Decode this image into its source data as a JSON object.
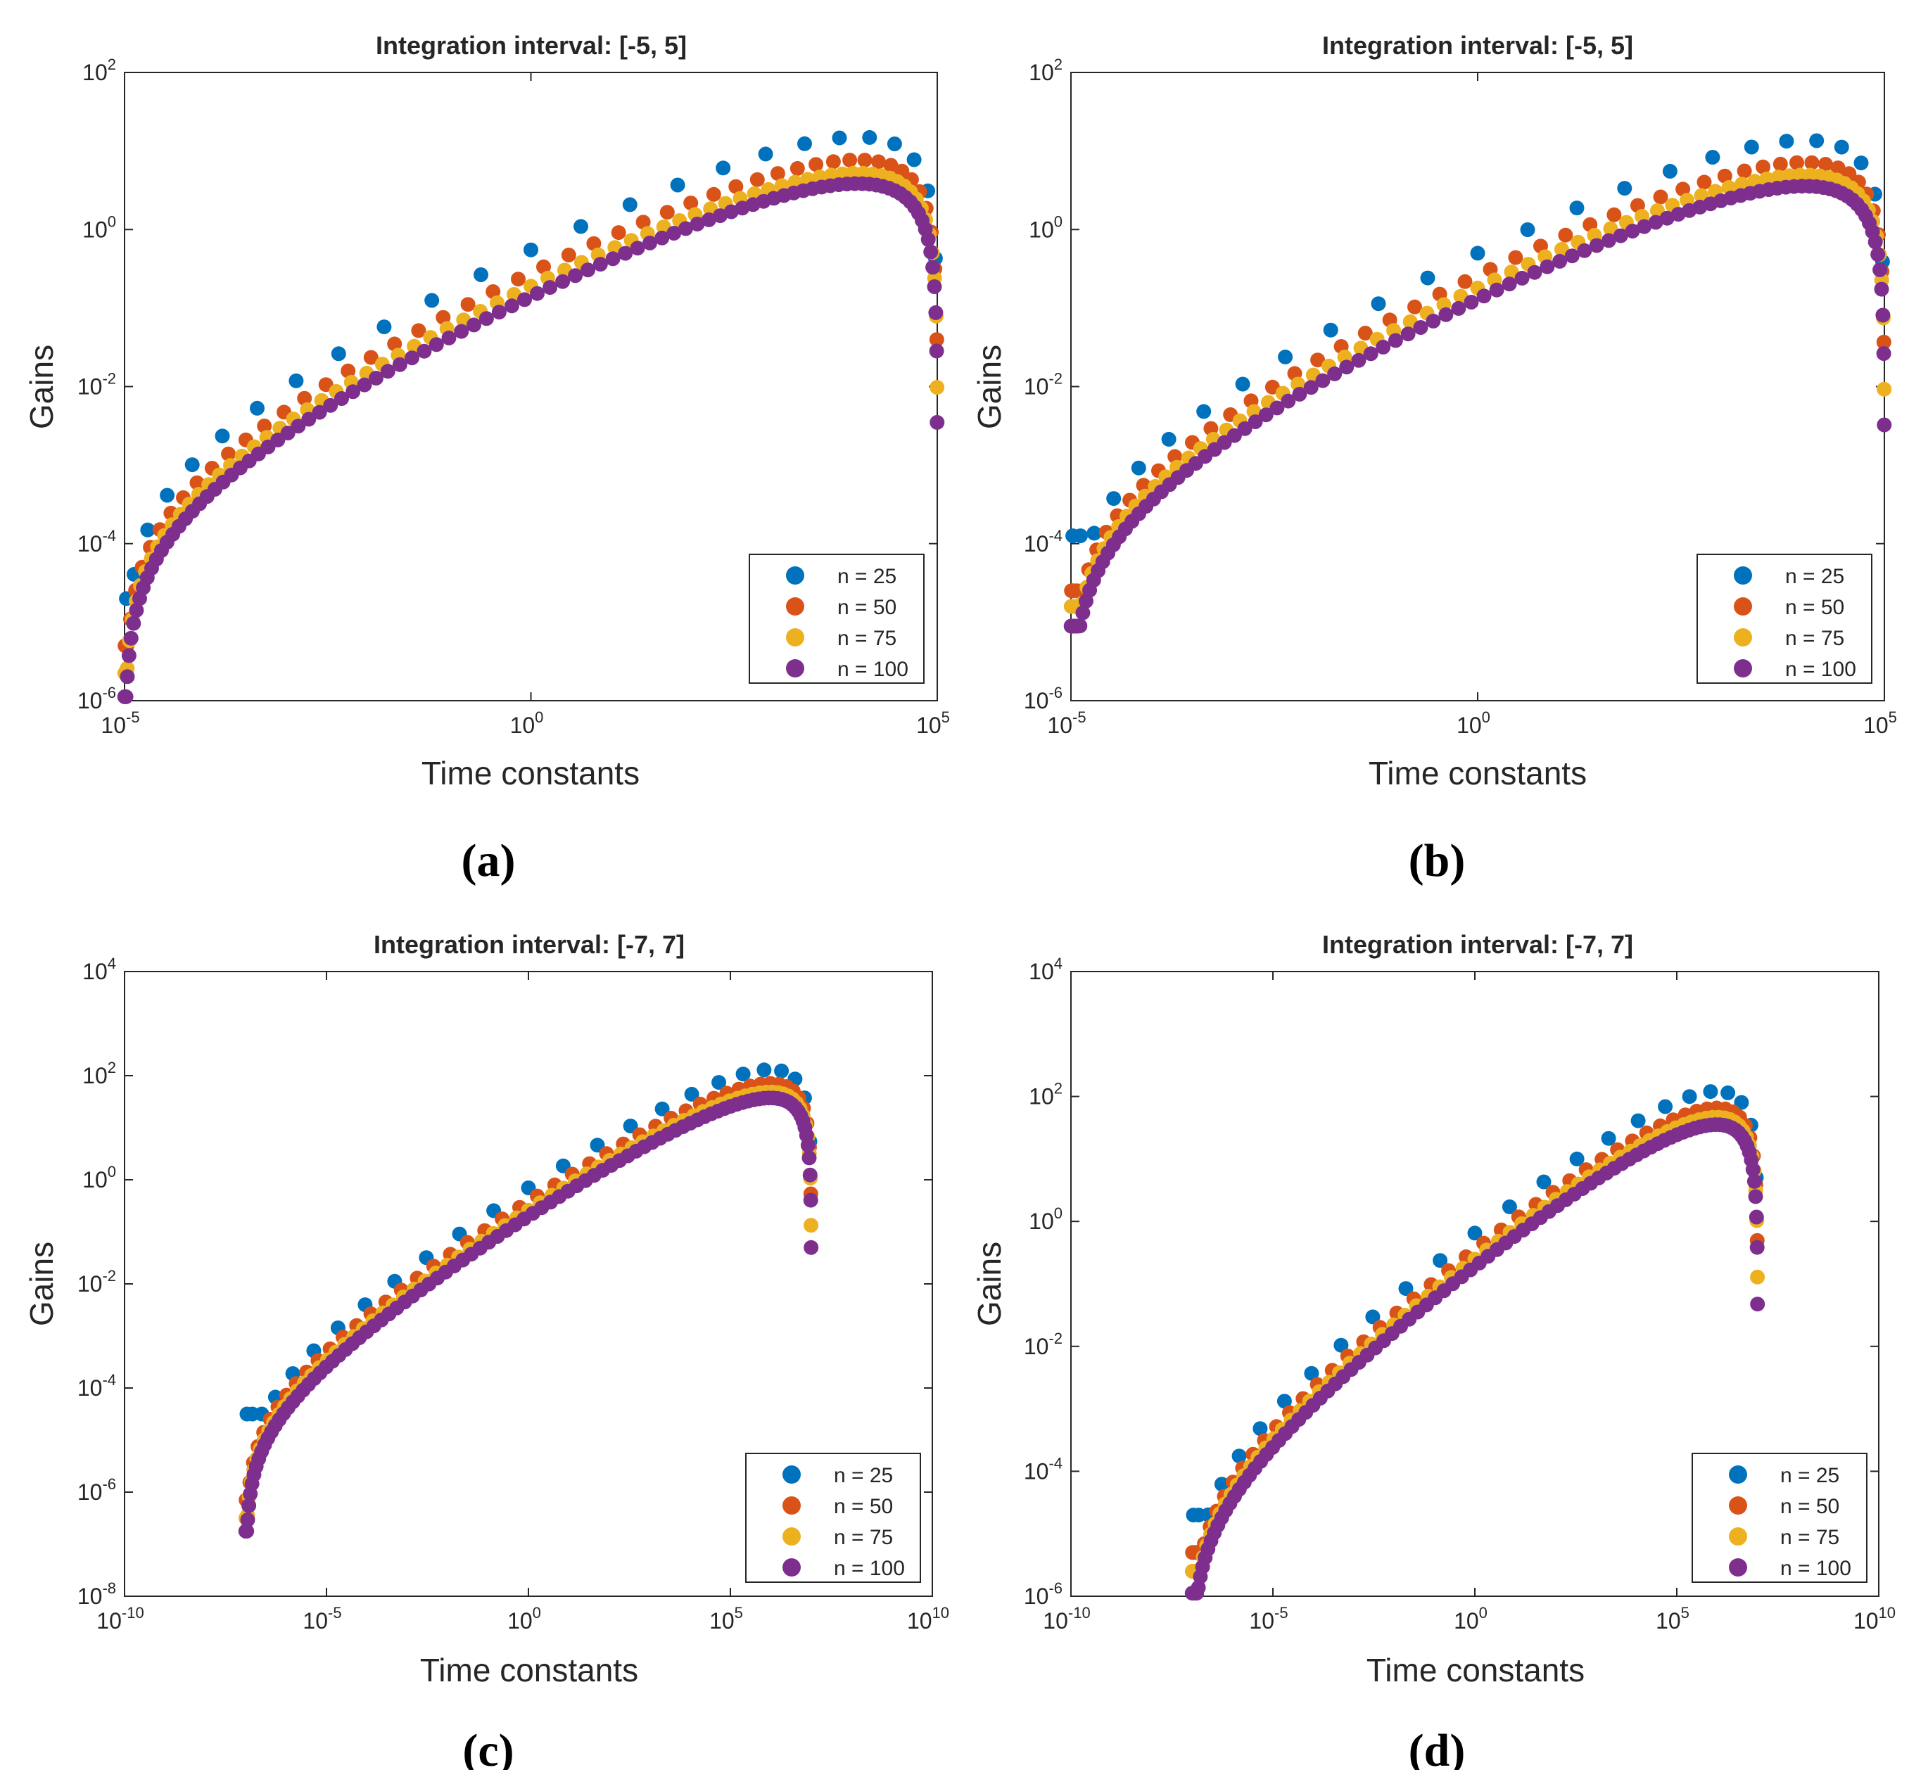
{
  "figure": {
    "panels": [
      {
        "id": "a",
        "caption_label": "(a)"
      },
      {
        "id": "b",
        "caption_label": "(b)"
      },
      {
        "id": "c",
        "caption_label": "(c)"
      },
      {
        "id": "d",
        "caption_label": "(d)"
      }
    ]
  },
  "colors": {
    "n25": "#0072BD",
    "n50": "#D95319",
    "n75": "#EDB120",
    "n100": "#7E2F8E"
  },
  "chart_data": [
    {
      "type": "scatter",
      "panel": "a",
      "title": "Integration interval: [-5, 5]",
      "xlabel": "Time constants",
      "ylabel": "Gains",
      "xscale": "log",
      "yscale": "log",
      "xlim_exp": [
        -5,
        5
      ],
      "ylim_exp": [
        -6,
        2
      ],
      "xticks": [
        {
          "base": "10",
          "exp": "-5",
          "value_exp": -5
        },
        {
          "base": "10",
          "exp": "0",
          "value_exp": 0
        },
        {
          "base": "10",
          "exp": "5",
          "value_exp": 5
        }
      ],
      "yticks": [
        {
          "base": "10",
          "exp": "-6",
          "value_exp": -6
        },
        {
          "base": "10",
          "exp": "-4",
          "value_exp": -4
        },
        {
          "base": "10",
          "exp": "-2",
          "value_exp": -2
        },
        {
          "base": "10",
          "exp": "0",
          "value_exp": 0
        },
        {
          "base": "10",
          "exp": "2",
          "value_exp": 2
        }
      ],
      "legend_position": "bottom-right",
      "series": [
        {
          "name": "n = 25",
          "n": 25,
          "color_key": "n25",
          "gain_at_1": 0.55,
          "peak_log_gain": 1.6,
          "min_log_gain": -4.7
        },
        {
          "name": "n = 50",
          "n": 50,
          "color_key": "n50",
          "gain_at_1": 0.28,
          "peak_log_gain": 1.25,
          "min_log_gain": -5.3
        },
        {
          "name": "n = 75",
          "n": 75,
          "color_key": "n75",
          "gain_at_1": 0.19,
          "peak_log_gain": 1.05,
          "min_log_gain": -5.65
        },
        {
          "name": "n = 100",
          "n": 100,
          "color_key": "n100",
          "gain_at_1": 0.14,
          "peak_log_gain": 0.95,
          "min_log_gain": -5.95
        }
      ]
    },
    {
      "type": "scatter",
      "panel": "b",
      "title": "Integration interval: [-5, 5]",
      "xlabel": "Time constants",
      "ylabel": "Gains",
      "xscale": "log",
      "yscale": "log",
      "xlim_exp": [
        -5,
        5
      ],
      "ylim_exp": [
        -6,
        2
      ],
      "xticks": [
        {
          "base": "10",
          "exp": "-5",
          "value_exp": -5
        },
        {
          "base": "10",
          "exp": "0",
          "value_exp": 0
        },
        {
          "base": "10",
          "exp": "5",
          "value_exp": 5
        }
      ],
      "yticks": [
        {
          "base": "10",
          "exp": "-6",
          "value_exp": -6
        },
        {
          "base": "10",
          "exp": "-4",
          "value_exp": -4
        },
        {
          "base": "10",
          "exp": "-2",
          "value_exp": -2
        },
        {
          "base": "10",
          "exp": "0",
          "value_exp": 0
        },
        {
          "base": "10",
          "exp": "2",
          "value_exp": 2
        }
      ],
      "legend_position": "bottom-right",
      "series": [
        {
          "name": "n = 25",
          "n": 25,
          "color_key": "n25",
          "gain_at_1": 0.5,
          "peak_log_gain": 1.55,
          "min_log_gain": -3.9
        },
        {
          "name": "n = 50",
          "n": 50,
          "color_key": "n50",
          "gain_at_1": 0.26,
          "peak_log_gain": 1.22,
          "min_log_gain": -4.6
        },
        {
          "name": "n = 75",
          "n": 75,
          "color_key": "n75",
          "gain_at_1": 0.18,
          "peak_log_gain": 1.05,
          "min_log_gain": -4.8
        },
        {
          "name": "n = 100",
          "n": 100,
          "color_key": "n100",
          "gain_at_1": 0.13,
          "peak_log_gain": 0.95,
          "min_log_gain": -5.05
        }
      ]
    },
    {
      "type": "scatter",
      "panel": "c",
      "title": "Integration interval: [-7, 7]",
      "xlabel": "Time constants",
      "ylabel": "Gains",
      "xscale": "log",
      "yscale": "log",
      "xlim_exp": [
        -10,
        10
      ],
      "ylim_exp": [
        -8,
        4
      ],
      "data_x_range_exp": [
        -7,
        7
      ],
      "xticks": [
        {
          "base": "10",
          "exp": "-10",
          "value_exp": -10
        },
        {
          "base": "10",
          "exp": "-5",
          "value_exp": -5
        },
        {
          "base": "10",
          "exp": "0",
          "value_exp": 0
        },
        {
          "base": "10",
          "exp": "5",
          "value_exp": 5
        },
        {
          "base": "10",
          "exp": "10",
          "value_exp": 10
        }
      ],
      "yticks": [
        {
          "base": "10",
          "exp": "-8",
          "value_exp": -8
        },
        {
          "base": "10",
          "exp": "-6",
          "value_exp": -6
        },
        {
          "base": "10",
          "exp": "-4",
          "value_exp": -4
        },
        {
          "base": "10",
          "exp": "-2",
          "value_exp": -2
        },
        {
          "base": "10",
          "exp": "0",
          "value_exp": 0
        },
        {
          "base": "10",
          "exp": "2",
          "value_exp": 2
        },
        {
          "base": "10",
          "exp": "4",
          "value_exp": 4
        }
      ],
      "legend_position": "bottom-right",
      "series": [
        {
          "name": "n = 25",
          "n": 25,
          "color_key": "n25",
          "gain_at_1": 0.7,
          "peak_log_gain": 2.65,
          "min_log_gain": -4.5
        },
        {
          "name": "n = 50",
          "n": 50,
          "color_key": "n50",
          "gain_at_1": 0.38,
          "peak_log_gain": 2.3,
          "min_log_gain": -6.15
        },
        {
          "name": "n = 75",
          "n": 75,
          "color_key": "n75",
          "gain_at_1": 0.26,
          "peak_log_gain": 2.15,
          "min_log_gain": -6.5
        },
        {
          "name": "n = 100",
          "n": 100,
          "color_key": "n100",
          "gain_at_1": 0.2,
          "peak_log_gain": 2.0,
          "min_log_gain": -6.75
        }
      ]
    },
    {
      "type": "scatter",
      "panel": "d",
      "title": "Integration interval: [-7, 7]",
      "xlabel": "Time constants",
      "ylabel": "Gains",
      "xscale": "log",
      "yscale": "log",
      "xlim_exp": [
        -10,
        10
      ],
      "ylim_exp": [
        -6,
        4
      ],
      "data_x_range_exp": [
        -7,
        7
      ],
      "xticks": [
        {
          "base": "10",
          "exp": "-10",
          "value_exp": -10
        },
        {
          "base": "10",
          "exp": "-5",
          "value_exp": -5
        },
        {
          "base": "10",
          "exp": "0",
          "value_exp": 0
        },
        {
          "base": "10",
          "exp": "5",
          "value_exp": 5
        },
        {
          "base": "10",
          "exp": "10",
          "value_exp": 10
        }
      ],
      "yticks": [
        {
          "base": "10",
          "exp": "-6",
          "value_exp": -6
        },
        {
          "base": "10",
          "exp": "-4",
          "value_exp": -4
        },
        {
          "base": "10",
          "exp": "-2",
          "value_exp": -2
        },
        {
          "base": "10",
          "exp": "0",
          "value_exp": 0
        },
        {
          "base": "10",
          "exp": "2",
          "value_exp": 2
        },
        {
          "base": "10",
          "exp": "4",
          "value_exp": 4
        }
      ],
      "legend_position": "bottom-right",
      "series": [
        {
          "name": "n = 25",
          "n": 25,
          "color_key": "n25",
          "gain_at_1": 0.65,
          "peak_log_gain": 2.55,
          "min_log_gain": -4.7
        },
        {
          "name": "n = 50",
          "n": 50,
          "color_key": "n50",
          "gain_at_1": 0.35,
          "peak_log_gain": 2.3,
          "min_log_gain": -5.3
        },
        {
          "name": "n = 75",
          "n": 75,
          "color_key": "n75",
          "gain_at_1": 0.25,
          "peak_log_gain": 2.15,
          "min_log_gain": -5.6
        },
        {
          "name": "n = 100",
          "n": 100,
          "color_key": "n100",
          "gain_at_1": 0.19,
          "peak_log_gain": 2.0,
          "min_log_gain": -5.95
        }
      ]
    }
  ]
}
